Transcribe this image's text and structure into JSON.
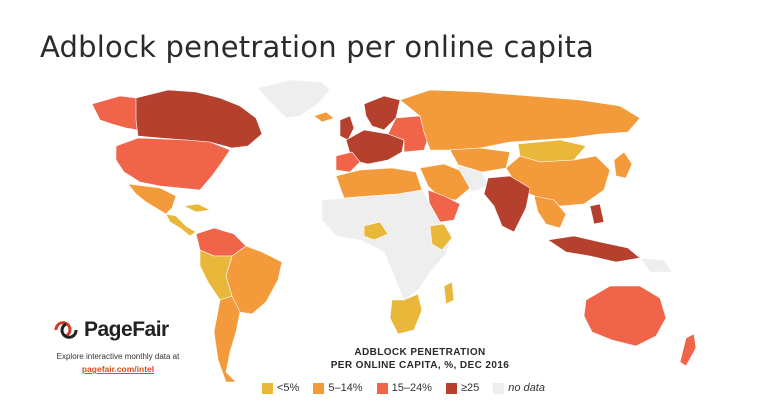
{
  "title": "Adblock penetration per online capita",
  "brand": {
    "logo_icon": "pagefair-logo-icon",
    "name": "PageFair",
    "explore_text": "Explore interactive monthly data at",
    "link_text": "pagefair.com/intel"
  },
  "legend": {
    "title_line1": "ADBLOCK PENETRATION",
    "title_line2": "PER ONLINE CAPITA, %, DEC 2016",
    "items": [
      {
        "label": "<5%",
        "color": "#e9b83a"
      },
      {
        "label": "5–14%",
        "color": "#f39a3b"
      },
      {
        "label": "15–24%",
        "color": "#f06549"
      },
      {
        "label": "≥25",
        "color": "#b5402e"
      },
      {
        "label": "no data",
        "color": "#eeeeee"
      }
    ]
  },
  "colors": {
    "low": "#e9b83a",
    "mid": "#f39a3b",
    "high": "#f06549",
    "top": "#b5402e",
    "none": "#eeeeee"
  }
}
